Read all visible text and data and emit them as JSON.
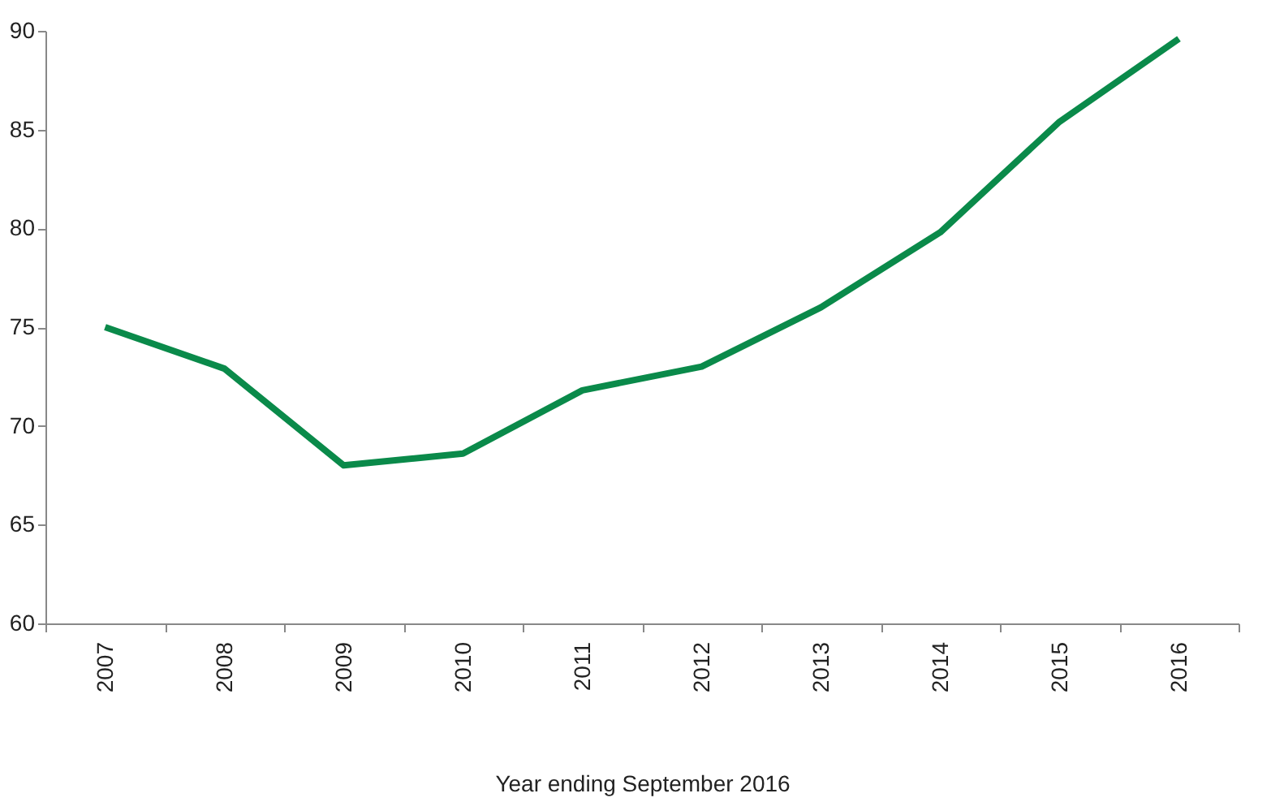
{
  "chart_data": {
    "type": "line",
    "xlabel": "Year ending September 2016",
    "categories": [
      "2007",
      "2008",
      "2009",
      "2010",
      "2011",
      "2012",
      "2013",
      "2014",
      "2015",
      "2016"
    ],
    "series": [
      {
        "color": "#0a8a4a",
        "values": [
          75.0,
          72.9,
          68.0,
          68.6,
          71.8,
          73.0,
          76.0,
          79.8,
          85.4,
          89.6
        ]
      }
    ],
    "ylim": [
      60,
      90
    ],
    "yticks": [
      60,
      65,
      70,
      75,
      80,
      85,
      90
    ],
    "grid": false,
    "marker": "none",
    "line_style": "solid"
  }
}
